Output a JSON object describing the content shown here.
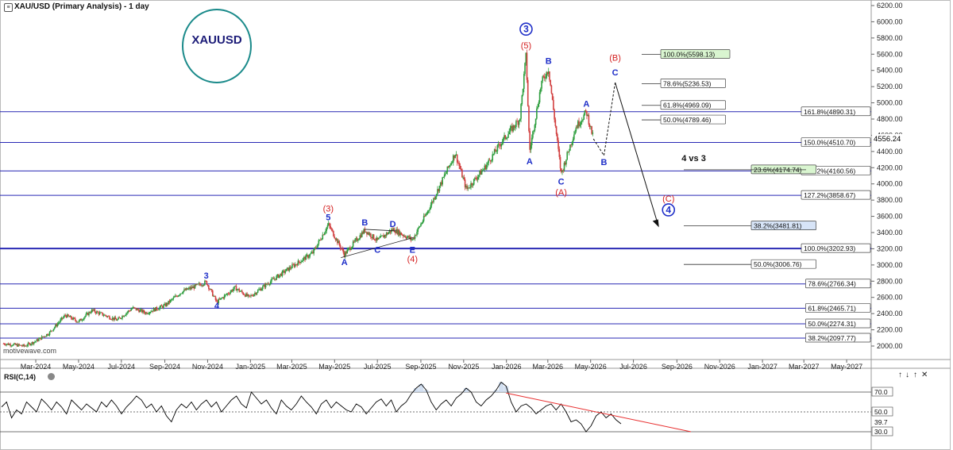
{
  "header": {
    "title": "XAU/USD (Primary Analysis) - 1 day",
    "symbol_badge": "XAUUSD",
    "watermark": "motivewave.com"
  },
  "colors": {
    "fib_line": "#2828b4",
    "blue_label": "#1f2fc8",
    "red_label": "#d42020",
    "up_candle": "#2e9e3e",
    "down_candle": "#d24040",
    "badge_ring": "#1a8a8a",
    "badge_text": "#1c1c78",
    "rsi_line": "#000000",
    "rsi_trend": "#e83030",
    "highlight_green": "#d9f5d0",
    "highlight_blue": "#d7e4f7"
  },
  "chart_data": [
    {
      "type": "candlestick",
      "title": "XAU/USD (Primary Analysis) - 1 day",
      "x_axis": {
        "labels": [
          "Mar-2024",
          "May-2024",
          "Jul-2024",
          "Sep-2024",
          "Nov-2024",
          "Jan-2025",
          "Mar-2025",
          "May-2025",
          "Jul-2025",
          "Sep-2025",
          "Nov-2025",
          "Jan-2026",
          "Mar-2026",
          "May-2026",
          "Jul-2026",
          "Sep-2026",
          "Nov-2026",
          "Jan-2027",
          "Mar-2027",
          "May-2027"
        ]
      },
      "y_axis": {
        "range": [
          1900,
          6250
        ],
        "ticks": [
          2000,
          2200,
          2400,
          2600,
          2800,
          3000,
          3200,
          3400,
          3600,
          3800,
          4000,
          4200,
          4400,
          4600,
          4800,
          5000,
          5200,
          5400,
          5600,
          5800,
          6000,
          6200
        ],
        "tick_labels": [
          "2000.00",
          "2200.00",
          "2400.00",
          "2600.00",
          "2800.00",
          "3000.00",
          "3200.00",
          "3400.00",
          "3600.00",
          "3800.00",
          "4000.00",
          "4200.00",
          "4400.00",
          "4600.00",
          "4800.00",
          "5000.00",
          "5200.00",
          "5400.00",
          "5600.00",
          "5800.00",
          "6000.00",
          "6200.00"
        ]
      },
      "last_price": {
        "value": 4556.24,
        "label": "4556.24"
      },
      "price_path": [
        {
          "date": "2024-01-15",
          "price": 2030
        },
        {
          "date": "2024-02-14",
          "price": 2000
        },
        {
          "date": "2024-03-01",
          "price": 2060
        },
        {
          "date": "2024-03-20",
          "price": 2160
        },
        {
          "date": "2024-04-12",
          "price": 2380
        },
        {
          "date": "2024-05-01",
          "price": 2300
        },
        {
          "date": "2024-05-20",
          "price": 2440
        },
        {
          "date": "2024-06-25",
          "price": 2320
        },
        {
          "date": "2024-07-17",
          "price": 2470
        },
        {
          "date": "2024-08-05",
          "price": 2410
        },
        {
          "date": "2024-09-01",
          "price": 2500
        },
        {
          "date": "2024-09-25",
          "price": 2670
        },
        {
          "date": "2024-10-30",
          "price": 2790
        },
        {
          "date": "2024-11-14",
          "price": 2540
        },
        {
          "date": "2024-12-10",
          "price": 2720
        },
        {
          "date": "2024-12-30",
          "price": 2600
        },
        {
          "date": "2025-01-30",
          "price": 2800
        },
        {
          "date": "2025-02-24",
          "price": 2950
        },
        {
          "date": "2025-03-31",
          "price": 3150
        },
        {
          "date": "2025-04-22",
          "price": 3500
        },
        {
          "date": "2025-05-15",
          "price": 3130
        },
        {
          "date": "2025-06-13",
          "price": 3430
        },
        {
          "date": "2025-07-01",
          "price": 3300
        },
        {
          "date": "2025-07-23",
          "price": 3440
        },
        {
          "date": "2025-08-20",
          "price": 3310
        },
        {
          "date": "2025-09-10",
          "price": 3650
        },
        {
          "date": "2025-10-20",
          "price": 4380
        },
        {
          "date": "2025-11-05",
          "price": 3930
        },
        {
          "date": "2025-12-01",
          "price": 4200
        },
        {
          "date": "2025-12-26",
          "price": 4530
        },
        {
          "date": "2026-01-20",
          "price": 4800
        },
        {
          "date": "2026-01-29",
          "price": 5590
        },
        {
          "date": "2026-02-03",
          "price": 4400
        },
        {
          "date": "2026-02-20",
          "price": 5250
        },
        {
          "date": "2026-03-02",
          "price": 5420
        },
        {
          "date": "2026-03-20",
          "price": 4120
        },
        {
          "date": "2026-04-10",
          "price": 4700
        },
        {
          "date": "2026-04-25",
          "price": 4890
        },
        {
          "date": "2026-05-05",
          "price": 4556
        }
      ],
      "projection_path": [
        {
          "date": "2026-05-05",
          "price": 4556
        },
        {
          "date": "2026-05-20",
          "price": 4350
        },
        {
          "date": "2026-06-05",
          "price": 5250
        },
        {
          "date": "2026-08-20",
          "price": 3700
        }
      ],
      "fib_levels": [
        {
          "label": "161.8%(4890.31)",
          "price": 4890.31
        },
        {
          "label": "150.0%(4510.70)",
          "price": 4510.7
        },
        {
          "label": "138.2%(4160.56)",
          "price": 4160.56
        },
        {
          "label": "127.2%(3858.67)",
          "price": 3858.67
        },
        {
          "label": "100.0%(3202.93)",
          "price": 3202.93
        },
        {
          "label": "78.6%(2766.34)",
          "price": 2766.34
        },
        {
          "label": "61.8%(2465.71)",
          "price": 2465.71
        },
        {
          "label": "50.0%(2274.31)",
          "price": 2274.31
        },
        {
          "label": "38.2%(2097.77)",
          "price": 2097.77
        }
      ],
      "fib_targets": [
        {
          "label": "100.0%(5598.13)",
          "price": 5598.13,
          "highlight": "green"
        },
        {
          "label": "78.6%(5236.53)",
          "price": 5236.53
        },
        {
          "label": "61.8%(4969.09)",
          "price": 4969.09
        },
        {
          "label": "50.0%(4789.46)",
          "price": 4789.46
        },
        {
          "label": "23.6%(4174.74)",
          "price": 4174.74,
          "highlight": "green"
        },
        {
          "label": "38.2%(3481.81)",
          "price": 3481.81,
          "highlight": "blue"
        },
        {
          "label": "50.0%(3006.76)",
          "price": 3006.76
        }
      ],
      "annotations": [
        {
          "text": "3",
          "date": "2024-10-30",
          "price": 2830,
          "color": "blue"
        },
        {
          "text": "4",
          "date": "2024-11-14",
          "price": 2460,
          "color": "blue"
        },
        {
          "text": "(3)",
          "date": "2025-04-22",
          "price": 3660,
          "color": "red"
        },
        {
          "text": "5",
          "date": "2025-04-22",
          "price": 3550,
          "color": "blue"
        },
        {
          "text": "A",
          "date": "2025-05-15",
          "price": 3000,
          "color": "blue"
        },
        {
          "text": "B",
          "date": "2025-06-13",
          "price": 3490,
          "color": "blue"
        },
        {
          "text": "C",
          "date": "2025-07-01",
          "price": 3150,
          "color": "blue"
        },
        {
          "text": "D",
          "date": "2025-07-23",
          "price": 3470,
          "color": "blue"
        },
        {
          "text": "E",
          "date": "2025-08-20",
          "price": 3150,
          "color": "blue"
        },
        {
          "text": "(4)",
          "date": "2025-08-20",
          "price": 3040,
          "color": "red"
        },
        {
          "text": "(5)",
          "date": "2026-01-29",
          "price": 5670,
          "color": "red"
        },
        {
          "text": "3",
          "date": "2026-01-29",
          "price": 5870,
          "color": "blue",
          "circled": true
        },
        {
          "text": "A",
          "date": "2026-02-03",
          "price": 4240,
          "color": "blue"
        },
        {
          "text": "B",
          "date": "2026-03-02",
          "price": 5480,
          "color": "blue"
        },
        {
          "text": "C",
          "date": "2026-03-20",
          "price": 3990,
          "color": "blue"
        },
        {
          "text": "(A)",
          "date": "2026-03-20",
          "price": 3860,
          "color": "red"
        },
        {
          "text": "A",
          "date": "2026-04-25",
          "price": 4950,
          "color": "blue"
        },
        {
          "text": "B",
          "date": "2026-05-20",
          "price": 4230,
          "color": "blue"
        },
        {
          "text": "(B)",
          "date": "2026-06-05",
          "price": 5520,
          "color": "red"
        },
        {
          "text": "C",
          "date": "2026-06-05",
          "price": 5340,
          "color": "blue"
        },
        {
          "text": "(C)",
          "date": "2026-08-20",
          "price": 3780,
          "color": "red"
        },
        {
          "text": "4",
          "date": "2026-08-20",
          "price": 3640,
          "color": "blue",
          "circled": true
        },
        {
          "text": "4 vs 3",
          "date": "2026-09-25",
          "price": 4280,
          "color": "black"
        }
      ]
    },
    {
      "type": "line",
      "title": "RSI(C,14)",
      "y_axis": {
        "range": [
          25,
          95
        ],
        "ticks": [
          30,
          50,
          70
        ],
        "tick_labels": [
          "30.0",
          "50.0",
          "70.0"
        ]
      },
      "last_value": {
        "value": 39.7,
        "label": "39.7"
      },
      "levels": [
        30,
        50,
        70
      ],
      "series": [
        {
          "values": [
            55,
            60,
            44,
            52,
            48,
            60,
            55,
            50,
            63,
            58,
            52,
            60,
            55,
            48,
            62,
            57,
            52,
            58,
            54,
            50,
            60,
            55,
            62,
            56,
            48,
            55,
            60,
            66,
            62,
            54,
            58,
            50,
            56,
            46,
            40,
            52,
            58,
            54,
            60,
            52,
            58,
            62,
            55,
            60,
            50,
            56,
            62,
            66,
            58,
            54,
            70,
            64,
            58,
            62,
            54,
            48,
            62,
            56,
            52,
            58,
            66,
            60,
            55,
            48,
            58,
            62,
            54,
            60,
            56,
            52,
            50,
            58,
            55,
            48,
            54,
            60,
            63,
            56,
            62,
            50,
            56,
            60,
            68,
            74,
            78,
            72,
            60,
            52,
            58,
            62,
            56,
            64,
            68,
            74,
            70,
            60,
            56,
            62,
            66,
            72,
            80,
            76,
            60,
            50,
            56,
            58,
            54,
            48,
            52,
            56,
            58,
            52,
            58,
            50,
            40,
            42,
            38,
            30,
            36,
            46,
            50,
            44,
            48,
            42,
            38
          ]
        }
      ],
      "trendline": {
        "from": {
          "index": 101,
          "value": 69
        },
        "to": {
          "index": 124,
          "value": 30
        }
      }
    }
  ]
}
